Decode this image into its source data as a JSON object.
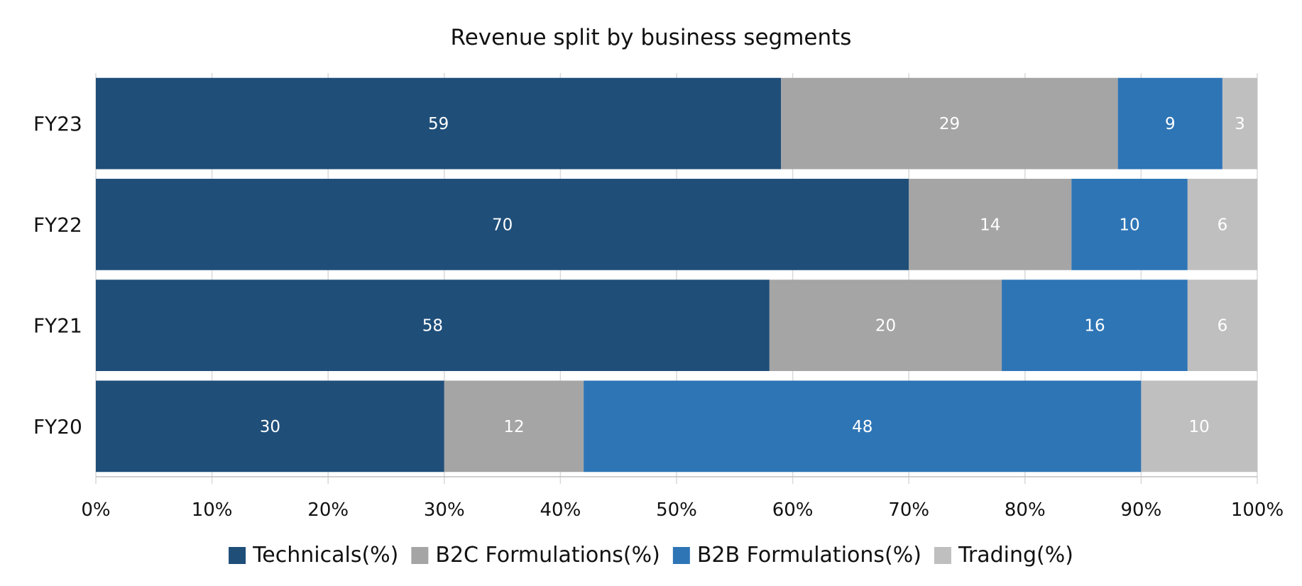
{
  "chart_data": {
    "type": "bar",
    "orientation": "horizontal",
    "stacked": "percent",
    "title": "Revenue split by business segments",
    "categories": [
      "FY23",
      "FY22",
      "FY21",
      "FY20"
    ],
    "series": [
      {
        "name": "Technicals(%)",
        "color": "#1f4e79",
        "values": [
          59,
          70,
          58,
          30
        ]
      },
      {
        "name": "B2C Formulations(%)",
        "color": "#a5a5a5",
        "values": [
          29,
          14,
          20,
          12
        ]
      },
      {
        "name": "B2B Formulations(%)",
        "color": "#2e75b6",
        "values": [
          9,
          10,
          16,
          48
        ]
      },
      {
        "name": "Trading(%)",
        "color": "#bfbfbf",
        "values": [
          3,
          6,
          6,
          10
        ]
      }
    ],
    "x_ticks": [
      "0%",
      "10%",
      "20%",
      "30%",
      "40%",
      "50%",
      "60%",
      "70%",
      "80%",
      "90%",
      "100%"
    ],
    "xlim": [
      0,
      100
    ],
    "grid": true,
    "legend": "bottom-center"
  }
}
